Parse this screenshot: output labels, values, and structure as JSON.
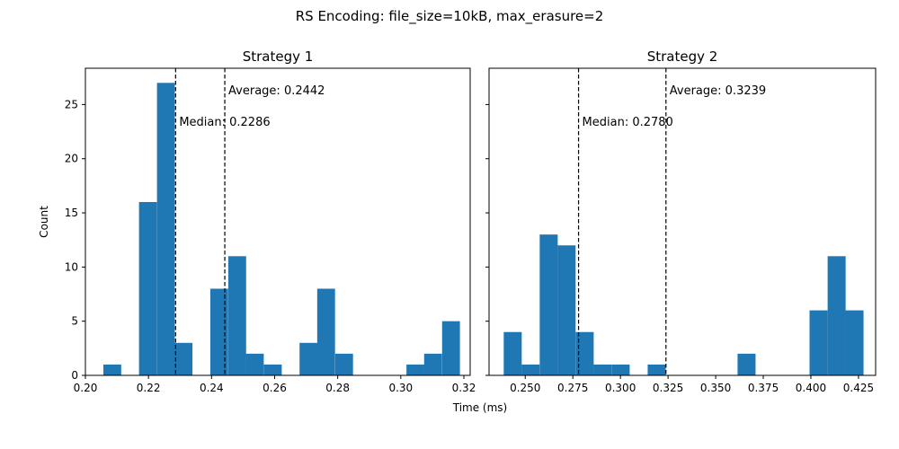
{
  "figure": {
    "suptitle": "RS Encoding: file_size=10kB, max_erasure=2",
    "xlabel": "Time (ms)",
    "ylabel": "Count"
  },
  "chart_data": [
    {
      "type": "bar",
      "title": "Strategy 1",
      "xlabel": "Time (ms)",
      "ylabel": "Count",
      "xlim": [
        0.2,
        0.322
      ],
      "ylim": [
        0,
        28.35
      ],
      "xticks": [
        "0.20",
        "0.22",
        "0.24",
        "0.26",
        "0.28",
        "0.30",
        "0.32"
      ],
      "yticks": [
        "0",
        "5",
        "10",
        "15",
        "20",
        "25"
      ],
      "bin_width": 0.00565,
      "bins": [
        {
          "start": 0.2057,
          "count": 1
        },
        {
          "start": 0.2114,
          "count": 0
        },
        {
          "start": 0.217,
          "count": 16
        },
        {
          "start": 0.2227,
          "count": 27
        },
        {
          "start": 0.2283,
          "count": 3
        },
        {
          "start": 0.234,
          "count": 0
        },
        {
          "start": 0.2396,
          "count": 8
        },
        {
          "start": 0.2453,
          "count": 11
        },
        {
          "start": 0.2509,
          "count": 2
        },
        {
          "start": 0.2566,
          "count": 1
        },
        {
          "start": 0.2622,
          "count": 0
        },
        {
          "start": 0.2679,
          "count": 3
        },
        {
          "start": 0.2735,
          "count": 8
        },
        {
          "start": 0.2792,
          "count": 2
        },
        {
          "start": 0.2848,
          "count": 0
        },
        {
          "start": 0.2905,
          "count": 0
        },
        {
          "start": 0.2961,
          "count": 0
        },
        {
          "start": 0.3018,
          "count": 1
        },
        {
          "start": 0.3074,
          "count": 2
        },
        {
          "start": 0.3131,
          "count": 5
        }
      ],
      "median": {
        "value": 0.2286,
        "label": "Median: 0.2286"
      },
      "average": {
        "value": 0.2442,
        "label": "Average: 0.2442"
      },
      "color": "#1f77b4"
    },
    {
      "type": "bar",
      "title": "Strategy 2",
      "xlabel": "Time (ms)",
      "xlim": [
        0.231,
        0.434
      ],
      "ylim": [
        0,
        28.35
      ],
      "xticks": [
        "0.250",
        "0.275",
        "0.300",
        "0.325",
        "0.350",
        "0.375",
        "0.400",
        "0.425"
      ],
      "yticks": [
        "0",
        "5",
        "10",
        "15",
        "20",
        "25"
      ],
      "bin_width": 0.00945,
      "bins": [
        {
          "start": 0.2387,
          "count": 4
        },
        {
          "start": 0.2481,
          "count": 1
        },
        {
          "start": 0.2576,
          "count": 13
        },
        {
          "start": 0.267,
          "count": 12
        },
        {
          "start": 0.2765,
          "count": 4
        },
        {
          "start": 0.2859,
          "count": 1
        },
        {
          "start": 0.2954,
          "count": 1
        },
        {
          "start": 0.3048,
          "count": 0
        },
        {
          "start": 0.3143,
          "count": 1
        },
        {
          "start": 0.3237,
          "count": 0
        },
        {
          "start": 0.3332,
          "count": 0
        },
        {
          "start": 0.3426,
          "count": 0
        },
        {
          "start": 0.3521,
          "count": 0
        },
        {
          "start": 0.3615,
          "count": 2
        },
        {
          "start": 0.371,
          "count": 0
        },
        {
          "start": 0.3804,
          "count": 0
        },
        {
          "start": 0.3899,
          "count": 0
        },
        {
          "start": 0.3993,
          "count": 6
        },
        {
          "start": 0.4088,
          "count": 11
        },
        {
          "start": 0.4182,
          "count": 6
        }
      ],
      "median": {
        "value": 0.278,
        "label": "Median: 0.2780"
      },
      "average": {
        "value": 0.3239,
        "label": "Average: 0.3239"
      },
      "color": "#1f77b4"
    }
  ]
}
